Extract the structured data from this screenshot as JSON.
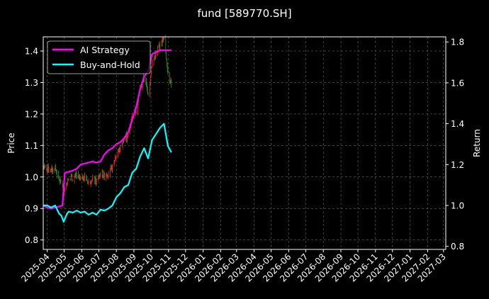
{
  "chart_data": {
    "type": "line",
    "title": "fund [589770.SH]",
    "ylabel_left": "Price",
    "ylabel_right": "Return",
    "x_ticks": [
      "2025-04",
      "2025-05",
      "2025-06",
      "2025-07",
      "2025-08",
      "2025-09",
      "2025-10",
      "2025-11",
      "2025-12",
      "2026-01",
      "2026-02",
      "2026-03",
      "2026-04",
      "2026-05",
      "2026-06",
      "2026-07",
      "2026-08",
      "2026-09",
      "2026-10",
      "2026-11",
      "2026-12",
      "2027-01",
      "2027-02",
      "2027-03"
    ],
    "xlim": [
      "2025-03-25",
      "2027-03-05"
    ],
    "y_left_ticks": [
      "0.8",
      "0.9",
      "1.0",
      "1.1",
      "1.2",
      "1.3",
      "1.4"
    ],
    "y_left_lim": [
      0.77,
      1.445
    ],
    "y_right_ticks": [
      "0.8",
      "1.0",
      "1.2",
      "1.4",
      "1.6",
      "1.8"
    ],
    "y_right_lim": [
      0.785,
      1.825
    ],
    "grid": true,
    "legend_position": "top-left",
    "series": [
      {
        "name": "AI Strategy",
        "axis": "right",
        "color": "#ff00ff",
        "points": [
          [
            "2025-03-25",
            1.0
          ],
          [
            "2025-04-01",
            0.99
          ],
          [
            "2025-04-08",
            0.985
          ],
          [
            "2025-04-15",
            0.99
          ],
          [
            "2025-04-22",
            0.995
          ],
          [
            "2025-04-28",
            1.0
          ],
          [
            "2025-05-02",
            1.16
          ],
          [
            "2025-05-09",
            1.165
          ],
          [
            "2025-05-16",
            1.17
          ],
          [
            "2025-05-23",
            1.18
          ],
          [
            "2025-05-30",
            1.2
          ],
          [
            "2025-06-06",
            1.205
          ],
          [
            "2025-06-13",
            1.21
          ],
          [
            "2025-06-20",
            1.215
          ],
          [
            "2025-06-27",
            1.21
          ],
          [
            "2025-07-04",
            1.215
          ],
          [
            "2025-07-11",
            1.25
          ],
          [
            "2025-07-18",
            1.27
          ],
          [
            "2025-07-25",
            1.28
          ],
          [
            "2025-08-01",
            1.3
          ],
          [
            "2025-08-08",
            1.31
          ],
          [
            "2025-08-15",
            1.33
          ],
          [
            "2025-08-22",
            1.36
          ],
          [
            "2025-08-29",
            1.42
          ],
          [
            "2025-09-05",
            1.48
          ],
          [
            "2025-09-12",
            1.57
          ],
          [
            "2025-09-19",
            1.63
          ],
          [
            "2025-09-26",
            1.66
          ],
          [
            "2025-10-03",
            1.74
          ],
          [
            "2025-10-10",
            1.75
          ],
          [
            "2025-10-17",
            1.76
          ],
          [
            "2025-10-24",
            1.76
          ],
          [
            "2025-10-31",
            1.76
          ],
          [
            "2025-11-06",
            1.76
          ]
        ]
      },
      {
        "name": "Buy-and-Hold",
        "axis": "right",
        "color": "#00ffff",
        "points": [
          [
            "2025-03-25",
            1.0
          ],
          [
            "2025-04-01",
            1.0
          ],
          [
            "2025-04-08",
            0.99
          ],
          [
            "2025-04-15",
            1.0
          ],
          [
            "2025-04-22",
            0.96
          ],
          [
            "2025-04-26",
            0.95
          ],
          [
            "2025-04-30",
            0.92
          ],
          [
            "2025-05-06",
            0.96
          ],
          [
            "2025-05-09",
            0.97
          ],
          [
            "2025-05-16",
            0.965
          ],
          [
            "2025-05-23",
            0.975
          ],
          [
            "2025-05-30",
            0.965
          ],
          [
            "2025-06-06",
            0.97
          ],
          [
            "2025-06-13",
            0.955
          ],
          [
            "2025-06-20",
            0.965
          ],
          [
            "2025-06-27",
            0.955
          ],
          [
            "2025-07-04",
            0.98
          ],
          [
            "2025-07-11",
            0.975
          ],
          [
            "2025-07-18",
            0.985
          ],
          [
            "2025-07-25",
            1.0
          ],
          [
            "2025-08-01",
            1.04
          ],
          [
            "2025-08-08",
            1.06
          ],
          [
            "2025-08-15",
            1.09
          ],
          [
            "2025-08-22",
            1.1
          ],
          [
            "2025-08-29",
            1.16
          ],
          [
            "2025-09-05",
            1.18
          ],
          [
            "2025-09-12",
            1.24
          ],
          [
            "2025-09-19",
            1.28
          ],
          [
            "2025-09-26",
            1.23
          ],
          [
            "2025-10-03",
            1.32
          ],
          [
            "2025-10-10",
            1.35
          ],
          [
            "2025-10-17",
            1.38
          ],
          [
            "2025-10-24",
            1.4
          ],
          [
            "2025-10-31",
            1.29
          ],
          [
            "2025-11-06",
            1.26
          ]
        ]
      }
    ]
  }
}
